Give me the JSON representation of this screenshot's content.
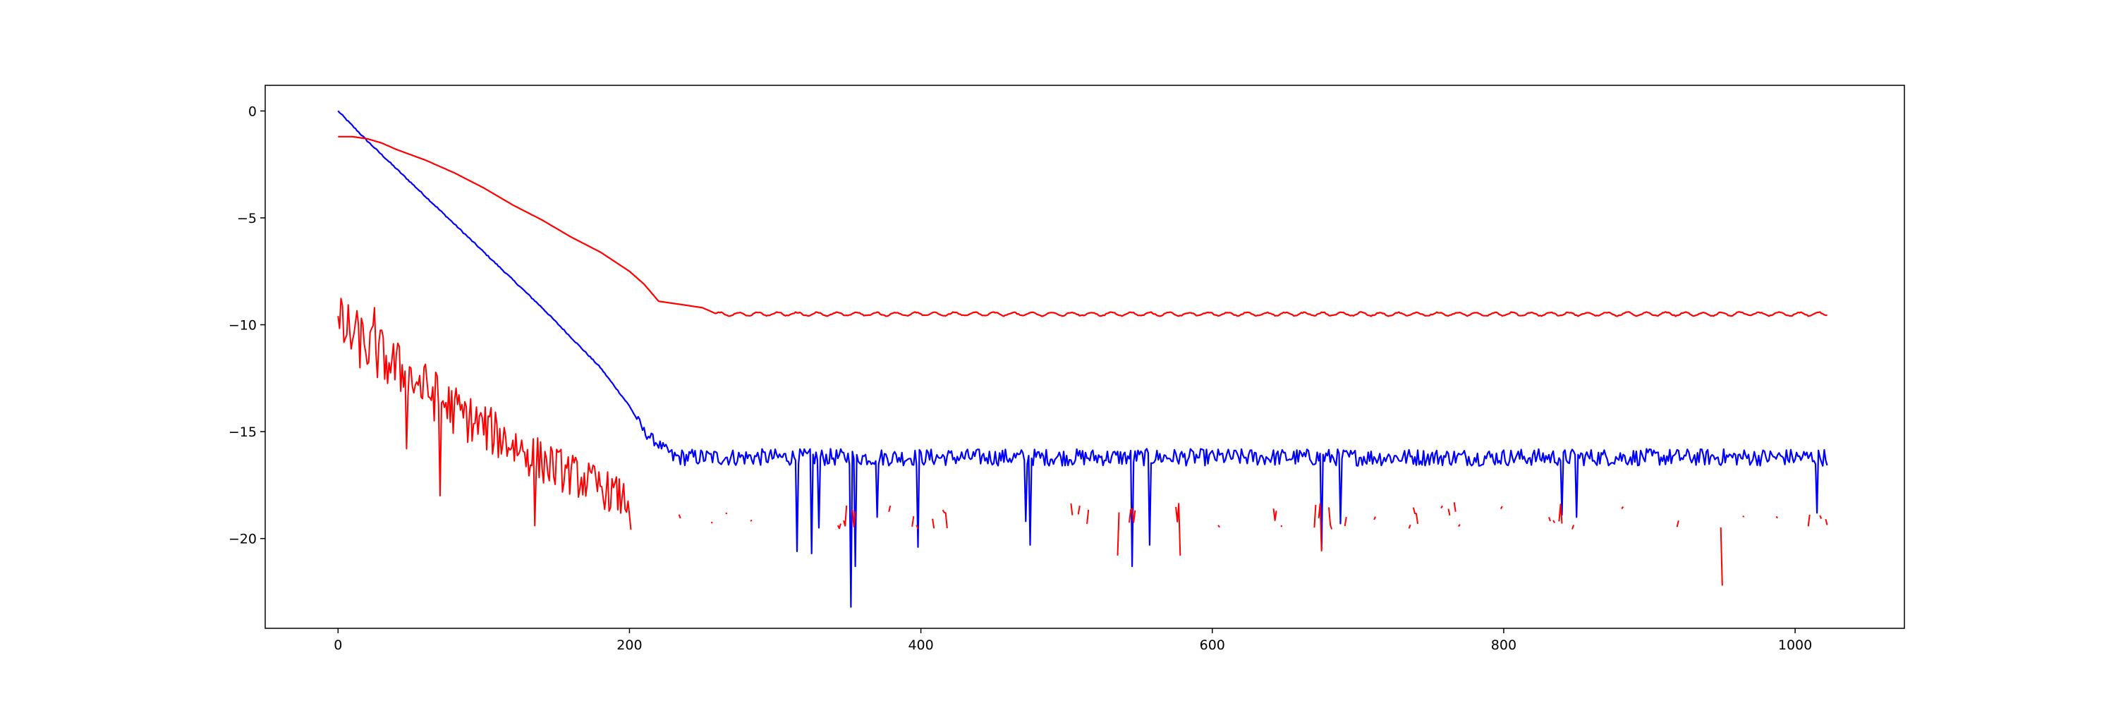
{
  "chart_data": {
    "type": "line",
    "title": "",
    "xlabel": "",
    "ylabel": "",
    "xlim": [
      -50,
      1075
    ],
    "ylim": [
      -24.2,
      1.2
    ],
    "x_ticks": [
      0,
      200,
      400,
      600,
      800,
      1000
    ],
    "y_ticks": [
      0,
      -5,
      -10,
      -15,
      -20
    ],
    "x_tick_labels": [
      "0",
      "200",
      "400",
      "600",
      "800",
      "1000"
    ],
    "y_tick_labels": [
      "0",
      "−5",
      "−10",
      "−15",
      "−20"
    ],
    "grid": false,
    "legend": "none",
    "series_colors": [
      "#0000ff",
      "#ff0000",
      "#ff0000"
    ],
    "series": [
      {
        "color": "#0000ff",
        "description_points": [
          [
            0,
            0.0
          ],
          [
            10,
            -0.7
          ],
          [
            20,
            -1.4
          ],
          [
            40,
            -2.7
          ],
          [
            60,
            -4.0
          ],
          [
            80,
            -5.3
          ],
          [
            100,
            -6.6
          ],
          [
            120,
            -7.9
          ],
          [
            140,
            -9.2
          ],
          [
            160,
            -10.6
          ],
          [
            180,
            -12.0
          ],
          [
            200,
            -13.8
          ],
          [
            210,
            -15.0
          ],
          [
            220,
            -15.6
          ],
          [
            230,
            -16.1
          ],
          [
            240,
            -16.2
          ],
          [
            300,
            -16.2
          ],
          [
            400,
            -16.2
          ],
          [
            500,
            -16.2
          ],
          [
            600,
            -16.2
          ],
          [
            700,
            -16.2
          ],
          [
            800,
            -16.2
          ],
          [
            900,
            -16.2
          ],
          [
            1000,
            -16.2
          ],
          [
            1022,
            -16.2
          ]
        ],
        "noise_band": [
          -16.6,
          -15.8
        ],
        "spikes": [
          [
            315,
            -20.6
          ],
          [
            325,
            -20.7
          ],
          [
            330,
            -19.5
          ],
          [
            352,
            -23.2
          ],
          [
            355,
            -21.3
          ],
          [
            370,
            -19.0
          ],
          [
            398,
            -20.4
          ],
          [
            472,
            -19.2
          ],
          [
            475,
            -20.3
          ],
          [
            545,
            -21.3
          ],
          [
            557,
            -20.3
          ],
          [
            675,
            -20.5
          ],
          [
            688,
            -19.3
          ],
          [
            840,
            -18.9
          ],
          [
            850,
            -19.0
          ],
          [
            1015,
            -18.8
          ]
        ]
      },
      {
        "color": "#ff0000",
        "description_points": [
          [
            0,
            -1.2
          ],
          [
            10,
            -1.2
          ],
          [
            20,
            -1.3
          ],
          [
            30,
            -1.5
          ],
          [
            40,
            -1.8
          ],
          [
            60,
            -2.3
          ],
          [
            80,
            -2.9
          ],
          [
            100,
            -3.6
          ],
          [
            120,
            -4.4
          ],
          [
            140,
            -5.1
          ],
          [
            160,
            -5.9
          ],
          [
            180,
            -6.6
          ],
          [
            200,
            -7.5
          ],
          [
            210,
            -8.1
          ],
          [
            220,
            -8.9
          ],
          [
            230,
            -9.0
          ],
          [
            240,
            -9.1
          ],
          [
            250,
            -9.2
          ],
          [
            260,
            -9.5
          ],
          [
            300,
            -9.5
          ],
          [
            400,
            -9.5
          ],
          [
            500,
            -9.5
          ],
          [
            600,
            -9.5
          ],
          [
            700,
            -9.5
          ],
          [
            800,
            -9.5
          ],
          [
            900,
            -9.5
          ],
          [
            1000,
            -9.5
          ],
          [
            1022,
            -9.5
          ]
        ],
        "noise_band": [
          -9.6,
          -9.3
        ]
      },
      {
        "color": "#ff0000",
        "description_points": [
          [
            0,
            -10.0
          ],
          [
            20,
            -11.0
          ],
          [
            40,
            -12.0
          ],
          [
            60,
            -13.0
          ],
          [
            80,
            -14.0
          ],
          [
            100,
            -14.8
          ],
          [
            120,
            -15.6
          ],
          [
            140,
            -16.4
          ],
          [
            160,
            -17.0
          ],
          [
            180,
            -17.6
          ],
          [
            200,
            -18.3
          ],
          [
            220,
            -18.6
          ],
          [
            260,
            -18.8
          ],
          [
            400,
            -18.8
          ],
          [
            600,
            -18.8
          ],
          [
            800,
            -18.8
          ],
          [
            1022,
            -18.8
          ]
        ],
        "noise_band_early": [
          -2.0,
          1.0
        ],
        "spikes": [
          [
            25,
            -9.2
          ],
          [
            47,
            -15.8
          ],
          [
            70,
            -18.0
          ],
          [
            135,
            -19.4
          ],
          [
            535,
            -20.8
          ],
          [
            578,
            -20.8
          ],
          [
            675,
            -20.6
          ],
          [
            950,
            -22.2
          ]
        ],
        "gappy_after": 200
      }
    ]
  }
}
